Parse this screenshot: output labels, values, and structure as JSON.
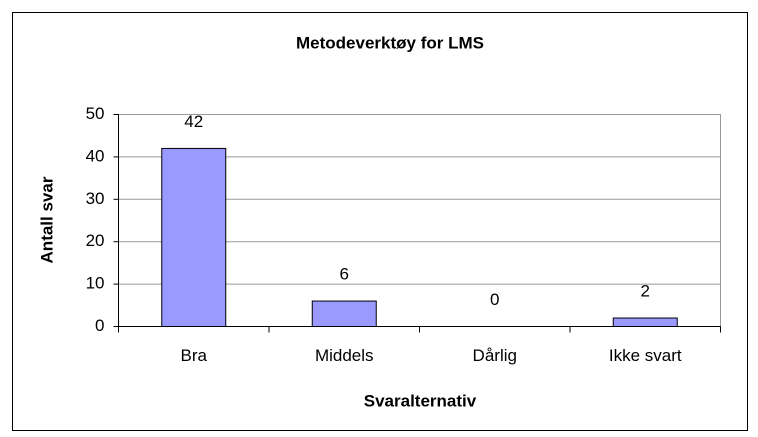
{
  "chart_data": {
    "type": "bar",
    "title": "Metodeverktøy for LMS",
    "x_label": "Svaralternativ",
    "y_label": "Antall svar",
    "categories": [
      "Bra",
      "Middels",
      "Dårlig",
      "Ikke svart"
    ],
    "values": [
      42,
      6,
      0,
      2
    ],
    "color": "#9999ff",
    "ylim": [
      0,
      50
    ],
    "yticks": [
      0,
      10,
      20,
      30,
      40,
      50
    ],
    "grid": true
  }
}
